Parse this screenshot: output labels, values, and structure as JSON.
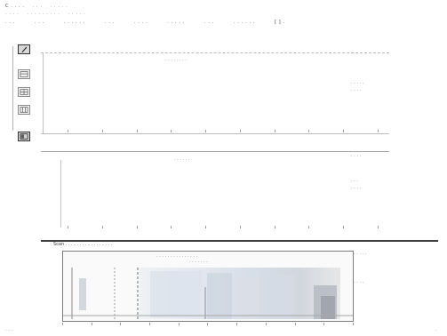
{
  "toolbar": {
    "line1": [
      "C . . . .",
      ". . .",
      ". . . . ."
    ],
    "line2": [
      ". . . .",
      ". . . . . . . . .",
      ". . . . ."
    ],
    "line3": [
      ". . .",
      ". . .",
      ". . . . . .",
      ". . .",
      ". . . .",
      ". . . . .",
      ". . .",
      ". . . . . .",
      "[ ] ."
    ]
  },
  "tools": [
    {
      "name": "pencil-icon"
    },
    {
      "name": "table-icon"
    },
    {
      "name": "grid-icon"
    },
    {
      "name": "grid-alt-icon"
    },
    {
      "name": "layout-icon"
    }
  ],
  "panels": {
    "top": {
      "title": ". . . . . . . .",
      "legend": [
        ". . .",
        ". . . . .",
        ". . . ."
      ]
    },
    "mid": {
      "title": ". . . . . .",
      "legend": [
        ". . . .",
        ". . .",
        ". . . ."
      ]
    },
    "bottom": {
      "header": "Scan . . . . . . . .  . . .  . . . . . .",
      "plot_title": ". . . . . . . . . . . . . . .",
      "plot_subtitle": ". . . . . . .",
      "legend": [
        ". . . . .",
        ". . . ."
      ]
    }
  },
  "footer": {
    "left": ". . .",
    "right": "."
  }
}
